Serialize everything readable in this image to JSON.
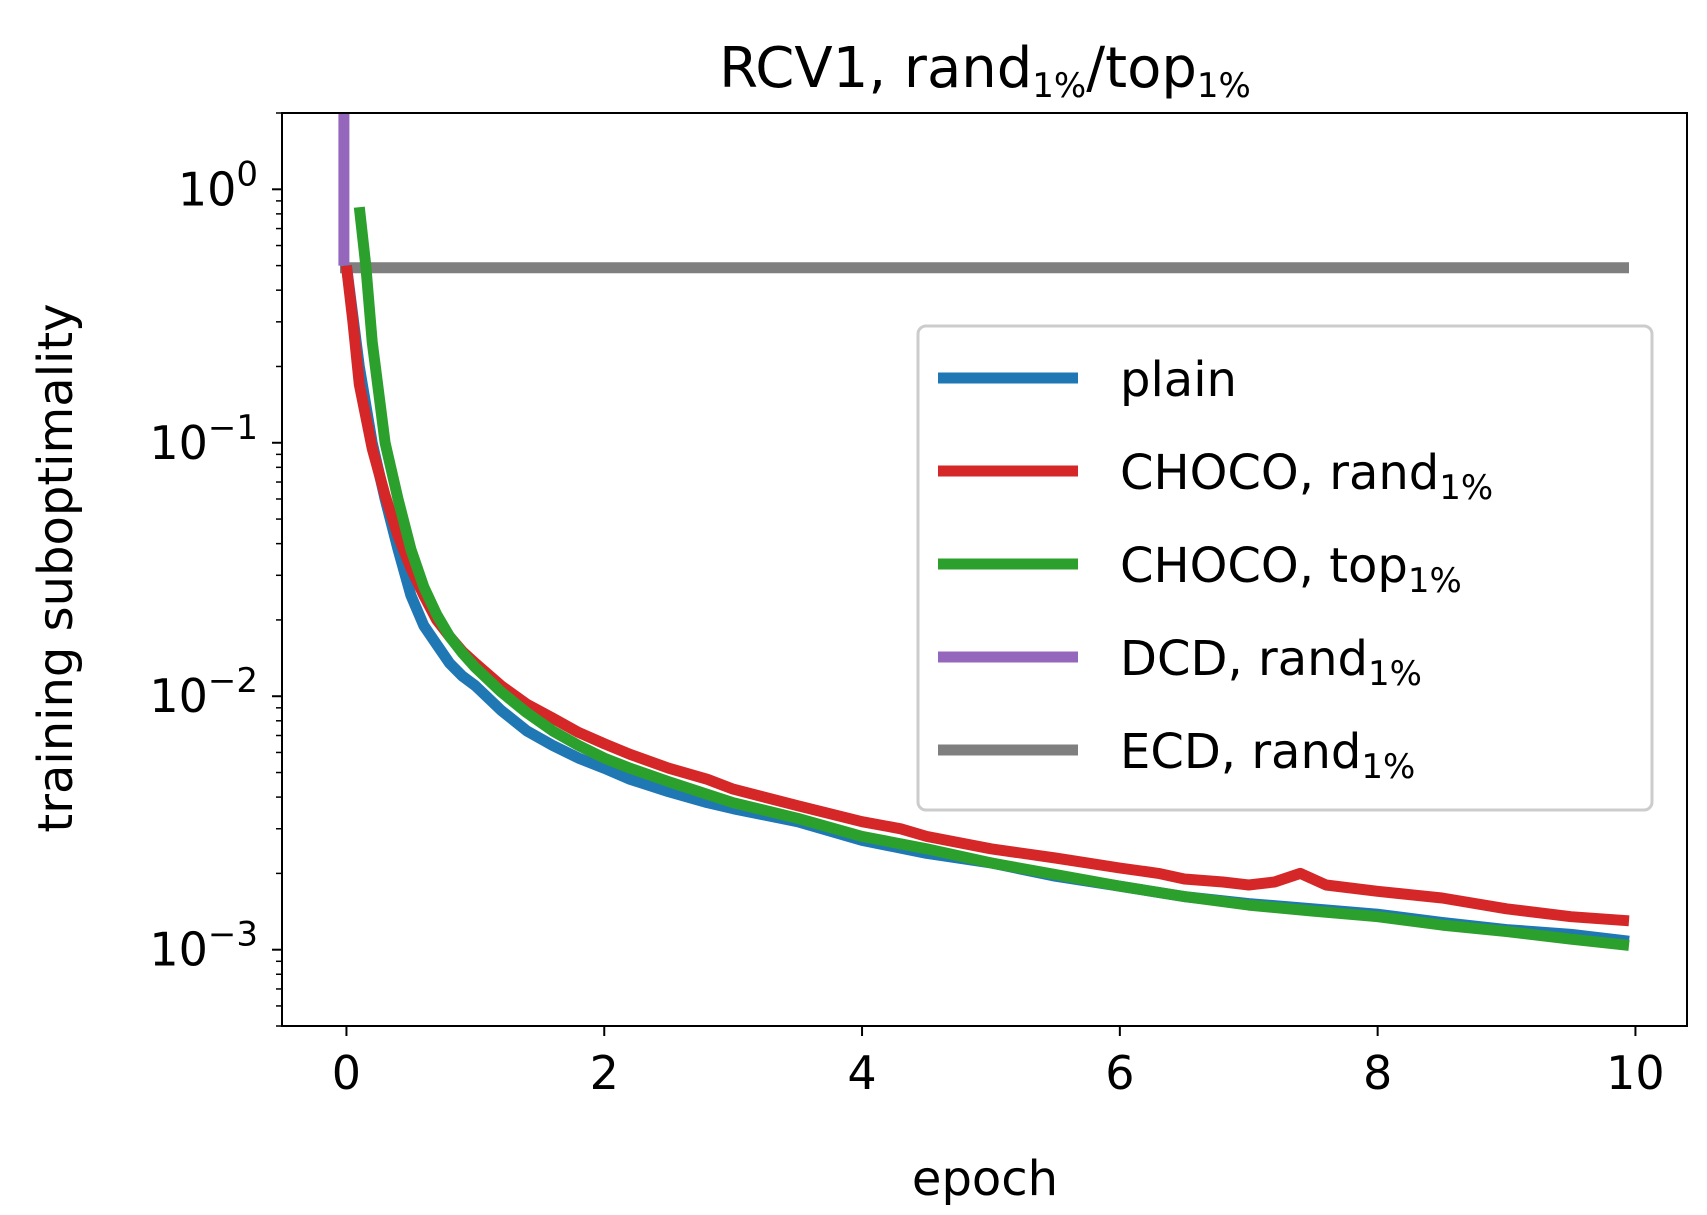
{
  "chart_data": {
    "type": "line",
    "title": {
      "main": "RCV1, rand",
      "sub1": "1%",
      "sep": "/top",
      "sub2": "1%"
    },
    "xlabel": "epoch",
    "ylabel": "training suboptimality",
    "xscale": "linear",
    "yscale": "log",
    "xlim": [
      -0.5,
      10.4
    ],
    "ylim": [
      0.0005,
      2.0
    ],
    "xticks": [
      0,
      2,
      4,
      6,
      8,
      10
    ],
    "xtick_labels": [
      "0",
      "2",
      "4",
      "6",
      "8",
      "10"
    ],
    "yticks": [
      {
        "value": 1,
        "base": "10",
        "exp": "0"
      },
      {
        "value": 0.1,
        "base": "10",
        "exp": "−1"
      },
      {
        "value": 0.01,
        "base": "10",
        "exp": "−2"
      },
      {
        "value": 0.001,
        "base": "10",
        "exp": "−3"
      }
    ],
    "legend_position": "center-right",
    "series": [
      {
        "name": "plain",
        "label_main": "plain",
        "label_sub": "",
        "color": "#1f77b4",
        "x": [
          0,
          0.1,
          0.2,
          0.3,
          0.4,
          0.5,
          0.6,
          0.7,
          0.8,
          0.9,
          1.0,
          1.2,
          1.4,
          1.6,
          1.8,
          2.0,
          2.2,
          2.5,
          2.8,
          3.0,
          3.5,
          4.0,
          4.5,
          5.0,
          5.5,
          6.0,
          6.5,
          7.0,
          7.5,
          8.0,
          8.5,
          9.0,
          9.5,
          9.95
        ],
        "y": [
          0.5,
          0.2,
          0.1,
          0.06,
          0.038,
          0.025,
          0.019,
          0.016,
          0.0135,
          0.012,
          0.011,
          0.0088,
          0.0073,
          0.0064,
          0.0057,
          0.0052,
          0.0047,
          0.0042,
          0.0038,
          0.0036,
          0.0032,
          0.0027,
          0.0024,
          0.0022,
          0.00195,
          0.00178,
          0.00162,
          0.00152,
          0.00145,
          0.00138,
          0.00128,
          0.0012,
          0.00115,
          0.00108
        ]
      },
      {
        "name": "CHOCO, rand1%",
        "label_main": "CHOCO,  rand",
        "label_sub": "1%",
        "color": "#d62728",
        "x": [
          0,
          0.05,
          0.1,
          0.2,
          0.3,
          0.4,
          0.5,
          0.6,
          0.7,
          0.8,
          0.9,
          1.0,
          1.2,
          1.4,
          1.6,
          1.8,
          2.0,
          2.2,
          2.5,
          2.8,
          3.0,
          3.5,
          4.0,
          4.3,
          4.5,
          5.0,
          5.5,
          6.0,
          6.3,
          6.5,
          6.8,
          7.0,
          7.2,
          7.4,
          7.6,
          8.0,
          8.5,
          9.0,
          9.5,
          9.95
        ],
        "y": [
          0.5,
          0.3,
          0.17,
          0.095,
          0.062,
          0.043,
          0.032,
          0.025,
          0.02,
          0.0172,
          0.015,
          0.0135,
          0.011,
          0.0093,
          0.0082,
          0.0072,
          0.0065,
          0.0059,
          0.0052,
          0.0047,
          0.0043,
          0.0037,
          0.0032,
          0.003,
          0.0028,
          0.0025,
          0.0023,
          0.0021,
          0.002,
          0.0019,
          0.00185,
          0.0018,
          0.00185,
          0.002,
          0.0018,
          0.0017,
          0.0016,
          0.00145,
          0.00135,
          0.0013
        ]
      },
      {
        "name": "CHOCO, top1%",
        "label_main": "CHOCO,  top",
        "label_sub": "1%",
        "color": "#2ca02c",
        "x": [
          0.1,
          0.15,
          0.2,
          0.3,
          0.4,
          0.5,
          0.6,
          0.7,
          0.8,
          0.9,
          1.0,
          1.2,
          1.4,
          1.6,
          1.8,
          2.0,
          2.2,
          2.5,
          2.8,
          3.0,
          3.5,
          4.0,
          4.5,
          5.0,
          5.5,
          6.0,
          6.5,
          7.0,
          7.5,
          8.0,
          8.5,
          9.0,
          9.5,
          9.95
        ],
        "y": [
          0.85,
          0.5,
          0.25,
          0.1,
          0.06,
          0.038,
          0.027,
          0.021,
          0.0172,
          0.0148,
          0.013,
          0.0104,
          0.0086,
          0.0073,
          0.0064,
          0.0057,
          0.0052,
          0.0046,
          0.0041,
          0.0038,
          0.0033,
          0.0028,
          0.0025,
          0.0022,
          0.00198,
          0.00178,
          0.00162,
          0.0015,
          0.00142,
          0.00135,
          0.00125,
          0.00118,
          0.0011,
          0.00104
        ]
      },
      {
        "name": "DCD, rand1%",
        "label_main": "DCD,  rand",
        "label_sub": "1%",
        "color": "#9467bd",
        "x": [
          -0.02,
          -0.02
        ],
        "y": [
          0.5,
          2.0
        ]
      },
      {
        "name": "ECD, rand1%",
        "label_main": "ECD,  rand",
        "label_sub": "1%",
        "color": "#7f7f7f",
        "x": [
          -0.05,
          9.95
        ],
        "y": [
          0.49,
          0.49
        ]
      }
    ]
  }
}
